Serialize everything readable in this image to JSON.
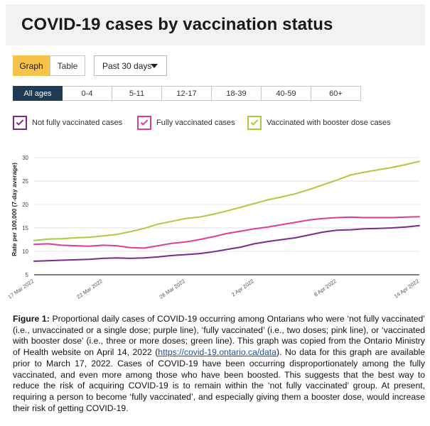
{
  "header": {
    "title": "COVID-19 cases by vaccination status"
  },
  "view_toggle": {
    "graph_label": "Graph",
    "table_label": "Table"
  },
  "period": {
    "selected": "Past 30 days"
  },
  "age_tabs": [
    "All ages",
    "0-4",
    "5-11",
    "12-17",
    "18-39",
    "40-59",
    "60+"
  ],
  "legend": [
    {
      "label": "Not fully vaccinated cases",
      "color": "#7b2a8c"
    },
    {
      "label": "Fully vaccinated cases",
      "color": "#e03a9a"
    },
    {
      "label": "Vaccinated with booster dose cases",
      "color": "#a6cc3c"
    }
  ],
  "chart_data": {
    "type": "line",
    "ylabel": "Rate per 100,000 (7-day average)",
    "ylim": [
      5,
      30
    ],
    "yticks": [
      5,
      10,
      15,
      20,
      25,
      30
    ],
    "grid": true,
    "x": [
      "17 Mar 2022",
      "18 Mar 2022",
      "19 Mar 2022",
      "20 Mar 2022",
      "21 Mar 2022",
      "22 Mar 2022",
      "23 Mar 2022",
      "24 Mar 2022",
      "25 Mar 2022",
      "26 Mar 2022",
      "27 Mar 2022",
      "28 Mar 2022",
      "29 Mar 2022",
      "30 Mar 2022",
      "31 Mar 2022",
      "1 Apr 2022",
      "2 Apr 2022",
      "3 Apr 2022",
      "4 Apr 2022",
      "5 Apr 2022",
      "6 Apr 2022",
      "7 Apr 2022",
      "8 Apr 2022",
      "9 Apr 2022",
      "10 Apr 2022",
      "11 Apr 2022",
      "12 Apr 2022",
      "13 Apr 2022",
      "14 Apr 2022"
    ],
    "xtick_labels": [
      {
        "index": 0,
        "label": "17 Mar 2022"
      },
      {
        "index": 5,
        "label": "22 Mar 2022"
      },
      {
        "index": 11,
        "label": "28 Mar 2022"
      },
      {
        "index": 16,
        "label": "2 Apr 2022"
      },
      {
        "index": 22,
        "label": "8 Apr 2022"
      },
      {
        "index": 28,
        "label": "14 Apr 2022"
      }
    ],
    "series": [
      {
        "name": "Vaccinated with booster dose cases",
        "color": "#a6cc3c",
        "values": [
          12.3,
          12.6,
          12.7,
          12.9,
          13.0,
          13.3,
          13.6,
          14.2,
          14.9,
          15.8,
          16.4,
          17.0,
          17.3,
          17.9,
          18.6,
          19.4,
          20.2,
          21.0,
          21.6,
          22.3,
          23.2,
          24.2,
          25.2,
          26.3,
          26.9,
          27.4,
          27.9,
          28.5,
          29.2
        ]
      },
      {
        "name": "Fully vaccinated cases",
        "color": "#e03a9a",
        "values": [
          11.5,
          11.6,
          11.3,
          11.2,
          11.1,
          11.3,
          11.2,
          10.8,
          10.7,
          11.2,
          11.7,
          12.0,
          12.5,
          13.1,
          13.8,
          14.3,
          14.8,
          15.2,
          15.7,
          16.2,
          16.7,
          17.0,
          17.2,
          17.3,
          17.2,
          17.2,
          17.2,
          17.3,
          17.4
        ]
      },
      {
        "name": "Not fully vaccinated cases",
        "color": "#7b2a8c",
        "values": [
          7.9,
          8.0,
          8.1,
          8.2,
          8.3,
          8.5,
          8.6,
          8.5,
          8.6,
          8.8,
          9.1,
          9.3,
          9.5,
          9.9,
          10.4,
          10.9,
          11.6,
          12.1,
          12.5,
          12.9,
          13.5,
          14.1,
          14.5,
          14.6,
          14.8,
          14.9,
          15.0,
          15.2,
          15.5
        ]
      }
    ]
  },
  "caption": {
    "figure_label": "Figure 1:",
    "text_before_link": " Proportional daily cases of COVID-19 occurring among Ontarians who were ‘not fully vaccinated’ (i.e., unvaccinated or a single dose; purple line), ‘fully vaccinated’ (i.e., two doses; pink line), or ‘vaccinated with booster dose’ (i.e., three or more doses; green line). This graph was copied from the Ontario Ministry of Health website on April 14, 2022 (",
    "link_text": "https://covid-19.ontario.ca/data",
    "text_after_link": "). No data for this graph are available prior to March 17, 2022. Cases of COVID-19 have been occurring disproportionately among the fully vaccinated, and even more among those who have been boosted. This suggests that the best way to reduce the risk of acquiring COVID-19 is to remain within the ‘not fully vaccinated’ group. At present, requiring a person to become ‘fully vaccinated’, and especially giving them a booster dose, would increase their risk of getting COVID-19."
  }
}
